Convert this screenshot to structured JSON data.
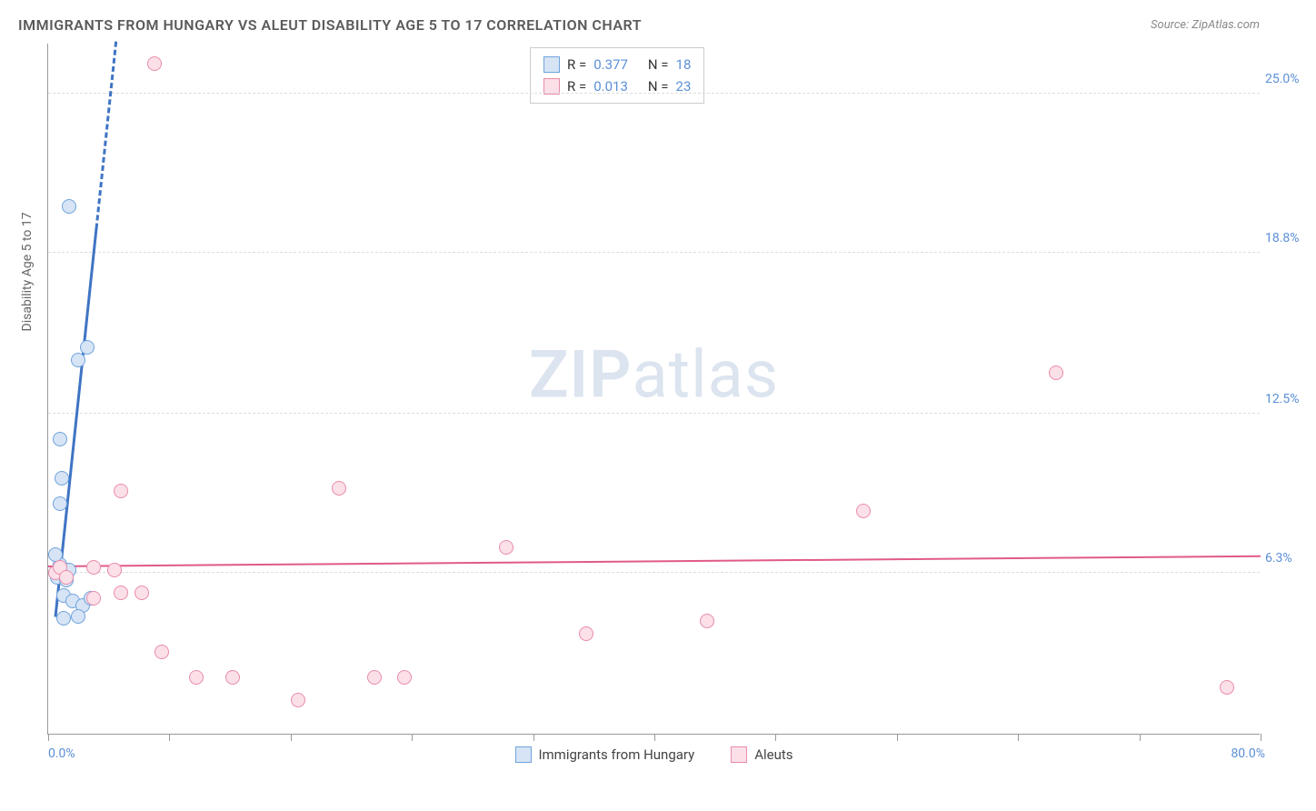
{
  "title": "IMMIGRANTS FROM HUNGARY VS ALEUT DISABILITY AGE 5 TO 17 CORRELATION CHART",
  "source": "Source: ZipAtlas.com",
  "watermark": {
    "bold": "ZIP",
    "light": "atlas"
  },
  "chart": {
    "type": "scatter",
    "background_color": "#ffffff",
    "grid_color": "#dddddd",
    "axis_color": "#999999",
    "xlim": [
      0,
      80
    ],
    "ylim": [
      0,
      27
    ],
    "x_ticks": [
      0,
      8,
      16,
      24,
      32,
      40,
      48,
      56,
      64,
      72,
      80
    ],
    "y_gridlines": [
      6.3,
      12.5,
      18.8,
      25.0
    ],
    "y_tick_labels": [
      "6.3%",
      "12.5%",
      "18.8%",
      "25.0%"
    ],
    "x_min_label": "0.0%",
    "x_max_label": "80.0%",
    "ylabel": "Disability Age 5 to 17",
    "label_fontsize": 14,
    "tick_label_color": "#5b8fd6",
    "marker_radius": 8,
    "series": [
      {
        "name": "Immigrants from Hungary",
        "color_fill": "#d6e4f5",
        "color_stroke": "#6fa3dd",
        "R": "0.377",
        "N": "18",
        "trend": {
          "x1": 0.5,
          "y1": 4.5,
          "x2": 4.5,
          "y2": 27,
          "solid_until_x": 3.2,
          "color": "#3f74c4",
          "width": 3
        },
        "points": [
          {
            "x": 0.5,
            "y": 6.3
          },
          {
            "x": 0.6,
            "y": 6.1
          },
          {
            "x": 0.8,
            "y": 6.6
          },
          {
            "x": 1.2,
            "y": 6.0
          },
          {
            "x": 1.4,
            "y": 6.4
          },
          {
            "x": 1.0,
            "y": 5.4
          },
          {
            "x": 1.6,
            "y": 5.2
          },
          {
            "x": 2.3,
            "y": 5.0
          },
          {
            "x": 2.8,
            "y": 5.3
          },
          {
            "x": 1.0,
            "y": 4.5
          },
          {
            "x": 2.0,
            "y": 4.6
          },
          {
            "x": 0.8,
            "y": 9.0
          },
          {
            "x": 0.9,
            "y": 10.0
          },
          {
            "x": 0.8,
            "y": 11.5
          },
          {
            "x": 2.0,
            "y": 14.6
          },
          {
            "x": 2.6,
            "y": 15.1
          },
          {
            "x": 1.4,
            "y": 20.6
          },
          {
            "x": 0.5,
            "y": 7.0
          }
        ]
      },
      {
        "name": "Aleuts",
        "color_fill": "#fbe0e8",
        "color_stroke": "#e98bab",
        "R": "0.013",
        "N": "23",
        "trend": {
          "x1": 0,
          "y1": 6.5,
          "x2": 80,
          "y2": 6.9,
          "color": "#e05a8a",
          "width": 2.5
        },
        "points": [
          {
            "x": 0.5,
            "y": 6.3
          },
          {
            "x": 0.8,
            "y": 6.5
          },
          {
            "x": 1.2,
            "y": 6.1
          },
          {
            "x": 3.0,
            "y": 6.5
          },
          {
            "x": 4.4,
            "y": 6.4
          },
          {
            "x": 3.0,
            "y": 5.3
          },
          {
            "x": 4.8,
            "y": 5.5
          },
          {
            "x": 6.2,
            "y": 5.5
          },
          {
            "x": 4.8,
            "y": 9.5
          },
          {
            "x": 19.2,
            "y": 9.6
          },
          {
            "x": 7.5,
            "y": 3.2
          },
          {
            "x": 9.8,
            "y": 2.2
          },
          {
            "x": 12.2,
            "y": 2.2
          },
          {
            "x": 16.5,
            "y": 1.3
          },
          {
            "x": 21.5,
            "y": 2.2
          },
          {
            "x": 23.5,
            "y": 2.2
          },
          {
            "x": 30.2,
            "y": 7.3
          },
          {
            "x": 35.5,
            "y": 3.9
          },
          {
            "x": 43.5,
            "y": 4.4
          },
          {
            "x": 53.8,
            "y": 8.7
          },
          {
            "x": 66.5,
            "y": 14.1
          },
          {
            "x": 77.8,
            "y": 1.8
          },
          {
            "x": 7.0,
            "y": 26.2
          }
        ]
      }
    ],
    "legend_box": {
      "rows": [
        {
          "swatch_fill": "#d6e4f5",
          "swatch_stroke": "#6fa3dd",
          "r_label": "R =",
          "r_val": "0.377",
          "n_label": "N =",
          "n_val": "18"
        },
        {
          "swatch_fill": "#fbe0e8",
          "swatch_stroke": "#e98bab",
          "r_label": "R =",
          "r_val": "0.013",
          "n_label": "N =",
          "n_val": "23"
        }
      ]
    },
    "bottom_legend": [
      {
        "swatch_fill": "#d6e4f5",
        "swatch_stroke": "#6fa3dd",
        "label": "Immigrants from Hungary"
      },
      {
        "swatch_fill": "#fbe0e8",
        "swatch_stroke": "#e98bab",
        "label": "Aleuts"
      }
    ]
  }
}
